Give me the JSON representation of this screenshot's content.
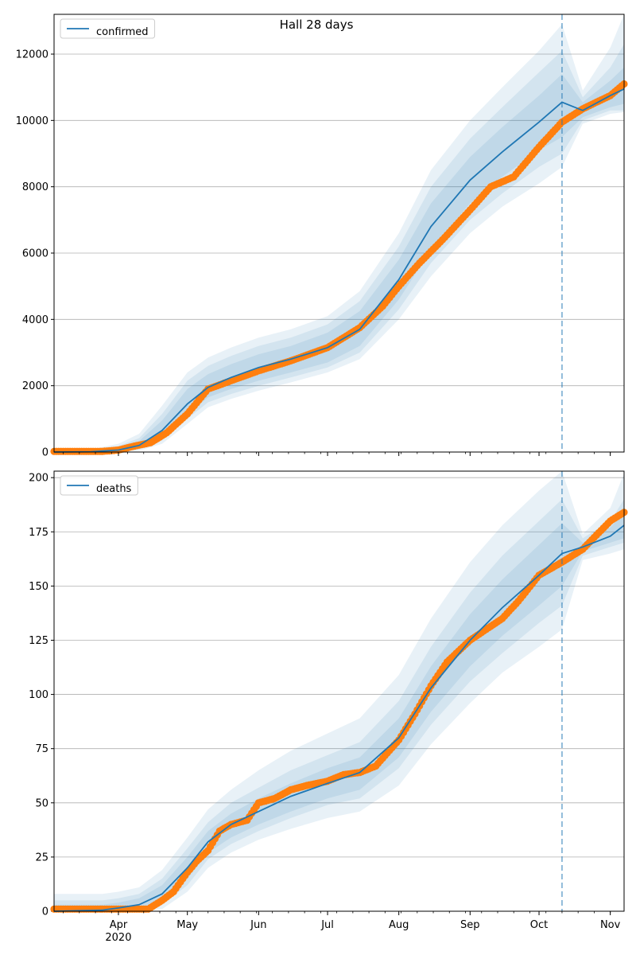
{
  "title": "Hall 28 days",
  "colors": {
    "model": "#1f77b4",
    "observed": "#ff7f0e",
    "band": "#1f77b4",
    "grid": "#b0b0b0",
    "axis": "#000000"
  },
  "x_axis": {
    "start": "2020-03-04",
    "end": "2020-11-07",
    "ticks": [
      {
        "date": "2020-04-01",
        "label": "Apr",
        "sublabel": "2020"
      },
      {
        "date": "2020-05-01",
        "label": "May",
        "sublabel": ""
      },
      {
        "date": "2020-06-01",
        "label": "Jun",
        "sublabel": ""
      },
      {
        "date": "2020-07-01",
        "label": "Jul",
        "sublabel": ""
      },
      {
        "date": "2020-08-01",
        "label": "Aug",
        "sublabel": ""
      },
      {
        "date": "2020-09-01",
        "label": "Sep",
        "sublabel": ""
      },
      {
        "date": "2020-10-01",
        "label": "Oct",
        "sublabel": ""
      },
      {
        "date": "2020-11-01",
        "label": "Nov",
        "sublabel": ""
      }
    ]
  },
  "forecast_date": "2020-10-11",
  "chart_data": [
    {
      "type": "line",
      "legend": "confirmed",
      "legend_position": "top-left",
      "ylim": [
        0,
        13200
      ],
      "yticks": [
        0,
        2000,
        4000,
        6000,
        8000,
        10000,
        12000
      ],
      "grid": true,
      "model": {
        "x": [
          "2020-03-04",
          "2020-03-20",
          "2020-04-01",
          "2020-04-10",
          "2020-04-20",
          "2020-05-01",
          "2020-05-10",
          "2020-05-20",
          "2020-06-01",
          "2020-06-15",
          "2020-07-01",
          "2020-07-15",
          "2020-08-01",
          "2020-08-15",
          "2020-09-01",
          "2020-09-15",
          "2020-10-01",
          "2020-10-11",
          "2020-10-20",
          "2020-11-01",
          "2020-11-07"
        ],
        "y": [
          0,
          10,
          60,
          200,
          650,
          1450,
          1950,
          2250,
          2550,
          2800,
          3150,
          3700,
          5200,
          6800,
          8200,
          9050,
          9950,
          10550,
          10300,
          10750,
          10950
        ]
      },
      "bands": [
        {
          "lower": [
            0,
            0,
            30,
            120,
            450,
            1150,
            1650,
            1900,
            2150,
            2400,
            2700,
            3200,
            4600,
            6100,
            7500,
            8300,
            9100,
            9500,
            10100,
            10400,
            10500
          ],
          "upper": [
            0,
            30,
            120,
            330,
            950,
            1900,
            2350,
            2650,
            2950,
            3200,
            3600,
            4250,
            5800,
            7500,
            8900,
            9800,
            10750,
            11400,
            10550,
            11200,
            11600
          ]
        },
        {
          "lower": [
            0,
            0,
            15,
            80,
            350,
            1000,
            1500,
            1750,
            2000,
            2250,
            2550,
            3000,
            4300,
            5700,
            7000,
            7800,
            8600,
            9000,
            10000,
            10300,
            10300
          ],
          "upper": [
            0,
            50,
            180,
            420,
            1150,
            2150,
            2600,
            2900,
            3200,
            3450,
            3850,
            4550,
            6200,
            8000,
            9450,
            10400,
            11450,
            12100,
            10700,
            11600,
            12300
          ]
        },
        {
          "lower": [
            0,
            0,
            5,
            40,
            250,
            850,
            1350,
            1600,
            1850,
            2100,
            2400,
            2800,
            4000,
            5300,
            6600,
            7400,
            8100,
            8600,
            9900,
            10200,
            10250
          ],
          "upper": [
            0,
            80,
            250,
            550,
            1400,
            2400,
            2850,
            3150,
            3450,
            3700,
            4100,
            4850,
            6600,
            8500,
            10000,
            11000,
            12100,
            12900,
            10900,
            12200,
            13200
          ]
        }
      ],
      "observed": {
        "x": [
          "2020-03-04",
          "2020-03-25",
          "2020-04-01",
          "2020-04-08",
          "2020-04-15",
          "2020-04-22",
          "2020-05-01",
          "2020-05-10",
          "2020-05-20",
          "2020-06-01",
          "2020-06-15",
          "2020-07-01",
          "2020-07-15",
          "2020-07-25",
          "2020-08-01",
          "2020-08-10",
          "2020-08-20",
          "2020-09-01",
          "2020-09-10",
          "2020-09-20",
          "2020-10-01",
          "2020-10-11",
          "2020-10-20",
          "2020-11-01",
          "2020-11-07"
        ],
        "y": [
          20,
          20,
          60,
          180,
          280,
          580,
          1150,
          1900,
          2150,
          2450,
          2750,
          3150,
          3750,
          4400,
          5000,
          5700,
          6400,
          7300,
          8000,
          8300,
          9200,
          9950,
          10350,
          10750,
          11100
        ]
      }
    },
    {
      "type": "line",
      "legend": "deaths",
      "legend_position": "top-left",
      "ylim": [
        0,
        203
      ],
      "yticks": [
        0,
        25,
        50,
        75,
        100,
        125,
        150,
        175,
        200
      ],
      "grid": true,
      "model": {
        "x": [
          "2020-03-04",
          "2020-03-25",
          "2020-04-01",
          "2020-04-10",
          "2020-04-20",
          "2020-05-01",
          "2020-05-10",
          "2020-05-20",
          "2020-06-01",
          "2020-06-15",
          "2020-07-01",
          "2020-07-15",
          "2020-08-01",
          "2020-08-15",
          "2020-09-01",
          "2020-09-15",
          "2020-10-01",
          "2020-10-11",
          "2020-10-20",
          "2020-11-01",
          "2020-11-07"
        ],
        "y": [
          0,
          0.5,
          1.5,
          3,
          8,
          20,
          32,
          40,
          46,
          53,
          59,
          64,
          80,
          103,
          125,
          140,
          155,
          165,
          168,
          173,
          178
        ]
      },
      "bands": [
        {
          "lower": [
            0,
            0,
            0,
            1,
            5,
            15,
            27,
            34,
            40,
            46,
            52,
            56,
            71,
            92,
            113,
            127,
            141,
            150,
            166,
            170,
            172
          ],
          "upper": [
            3,
            3,
            4,
            6,
            12,
            25,
            37,
            45,
            52,
            59,
            66,
            71,
            89,
            113,
            137,
            153,
            169,
            179,
            170,
            177,
            184
          ]
        },
        {
          "lower": [
            0,
            0,
            0,
            0,
            3,
            12,
            24,
            31,
            37,
            43,
            49,
            52,
            66,
            86,
            106,
            119,
            133,
            141,
            164,
            168,
            170
          ],
          "upper": [
            5,
            5,
            6,
            8,
            15,
            29,
            41,
            50,
            57,
            65,
            72,
            78,
            97,
            122,
            147,
            164,
            180,
            190,
            172,
            180,
            190
          ]
        },
        {
          "lower": [
            0,
            0,
            0,
            0,
            1,
            9,
            20,
            27,
            33,
            38,
            43,
            46,
            58,
            77,
            96,
            110,
            122,
            130,
            162,
            165,
            167
          ],
          "upper": [
            8,
            8,
            9,
            11,
            19,
            34,
            47,
            56,
            65,
            74,
            82,
            89,
            109,
            135,
            161,
            178,
            194,
            203,
            174,
            186,
            202
          ]
        }
      ],
      "observed": {
        "x": [
          "2020-03-04",
          "2020-04-01",
          "2020-04-14",
          "2020-04-20",
          "2020-04-25",
          "2020-05-01",
          "2020-05-05",
          "2020-05-10",
          "2020-05-15",
          "2020-05-20",
          "2020-05-27",
          "2020-06-01",
          "2020-06-08",
          "2020-06-15",
          "2020-06-22",
          "2020-07-01",
          "2020-07-08",
          "2020-07-15",
          "2020-07-22",
          "2020-08-01",
          "2020-08-08",
          "2020-08-15",
          "2020-08-22",
          "2020-09-01",
          "2020-09-08",
          "2020-09-15",
          "2020-09-22",
          "2020-10-01",
          "2020-10-11",
          "2020-10-20",
          "2020-11-01",
          "2020-11-07"
        ],
        "y": [
          1,
          1,
          1,
          5,
          9,
          18,
          23,
          28,
          37,
          40,
          42,
          50,
          52,
          56,
          58,
          60,
          63,
          64,
          67,
          79,
          91,
          104,
          115,
          125,
          130,
          135,
          143,
          155,
          161,
          167,
          180,
          184
        ]
      }
    }
  ]
}
